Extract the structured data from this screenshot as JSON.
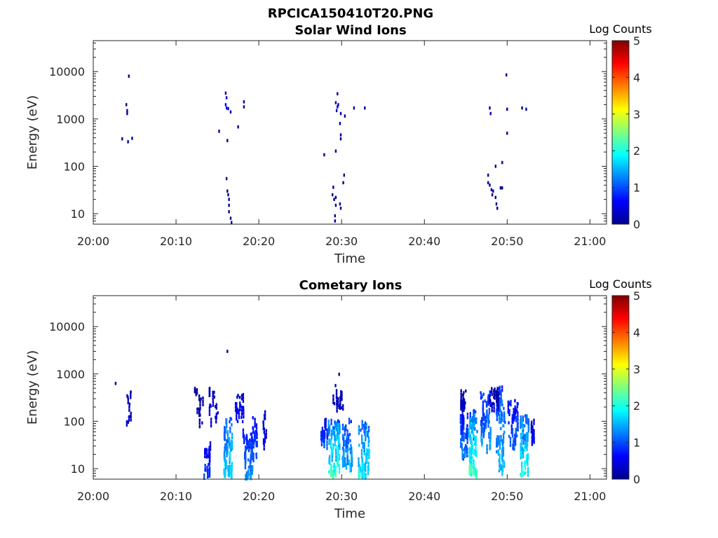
{
  "figure": {
    "title": "RPCICA150410T20.PNG",
    "colorbar_label": "Log Counts"
  },
  "chart_data": [
    {
      "type": "heatmap",
      "title": "Solar Wind Ions",
      "xlabel": "Time",
      "ylabel": "Energy (eV)",
      "x_ticks": [
        "20:00",
        "20:10",
        "20:20",
        "20:30",
        "20:40",
        "20:50",
        "21:00"
      ],
      "xlim_minutes": [
        0,
        62
      ],
      "y_scale": "log",
      "y_ticks": [
        "10",
        "100",
        "1000",
        "10000"
      ],
      "ylim": [
        6,
        45000
      ],
      "colorbar": {
        "label": "Log Counts",
        "ticks": [
          "0",
          "1",
          "2",
          "3",
          "4",
          "5"
        ],
        "range": [
          0,
          5
        ],
        "colormap": "jet"
      },
      "cells": [
        [
          3.4,
          380,
          0.1
        ],
        [
          4.1,
          330,
          0.1
        ],
        [
          4.6,
          390,
          0.1
        ],
        [
          3.9,
          2000,
          0.1
        ],
        [
          4.0,
          1500,
          0.3
        ],
        [
          4.0,
          1300,
          0.2
        ],
        [
          4.2,
          8000,
          0.1
        ],
        [
          15.1,
          550,
          0.1
        ],
        [
          15.9,
          3500,
          0.3
        ],
        [
          16.0,
          2800,
          0.4
        ],
        [
          15.9,
          2000,
          0.6
        ],
        [
          16.0,
          1700,
          0.7
        ],
        [
          16.2,
          1650,
          0.4
        ],
        [
          16.1,
          350,
          0.1
        ],
        [
          16.5,
          1400,
          0.2
        ],
        [
          17.4,
          680,
          0.1
        ],
        [
          18.1,
          2300,
          0.2
        ],
        [
          18.1,
          1800,
          0.2
        ],
        [
          16.0,
          55,
          0.1
        ],
        [
          16.1,
          30,
          0.1
        ],
        [
          16.2,
          25,
          0.1
        ],
        [
          16.3,
          20,
          0.1
        ],
        [
          16.3,
          15,
          0.1
        ],
        [
          16.3,
          11,
          0.1
        ],
        [
          16.5,
          8,
          0.1
        ],
        [
          16.6,
          6.5,
          0.1
        ],
        [
          29.4,
          3400,
          0.2
        ],
        [
          29.2,
          2200,
          0.4
        ],
        [
          29.5,
          2000,
          0.3
        ],
        [
          29.4,
          1800,
          0.4
        ],
        [
          29.3,
          1500,
          0.3
        ],
        [
          29.8,
          1300,
          0.2
        ],
        [
          29.7,
          800,
          0.1
        ],
        [
          30.3,
          1150,
          0.1
        ],
        [
          29.8,
          460,
          0.1
        ],
        [
          29.8,
          380,
          0.1
        ],
        [
          29.2,
          210,
          0.1
        ],
        [
          27.8,
          175,
          0.1
        ],
        [
          30.2,
          65,
          0.1
        ],
        [
          30.1,
          45,
          0.1
        ],
        [
          31.4,
          1700,
          0.1
        ],
        [
          32.7,
          1700,
          0.1
        ],
        [
          28.9,
          36,
          0.1
        ],
        [
          28.8,
          25,
          0.1
        ],
        [
          29.2,
          22,
          0.1
        ],
        [
          29.0,
          20,
          0.1
        ],
        [
          29.2,
          15,
          0.1
        ],
        [
          29.1,
          9,
          0.1
        ],
        [
          29.1,
          7,
          0.1
        ],
        [
          29.7,
          16,
          0.1
        ],
        [
          29.8,
          13,
          0.1
        ],
        [
          47.8,
          1700,
          0.2
        ],
        [
          47.9,
          1300,
          0.2
        ],
        [
          49.8,
          8500,
          0.1
        ],
        [
          49.9,
          1600,
          0.1
        ],
        [
          49.9,
          500,
          0.1
        ],
        [
          51.7,
          1700,
          0.1
        ],
        [
          52.2,
          1600,
          0.2
        ],
        [
          49.3,
          120,
          0.1
        ],
        [
          48.5,
          100,
          0.1
        ],
        [
          47.6,
          65,
          0.1
        ],
        [
          47.6,
          45,
          0.1
        ],
        [
          47.8,
          40,
          0.1
        ],
        [
          48.0,
          32,
          0.1
        ],
        [
          48.2,
          30,
          0.1
        ],
        [
          48.1,
          25,
          0.1
        ],
        [
          48.5,
          22,
          0.1
        ],
        [
          48.6,
          16,
          0.1
        ],
        [
          48.7,
          13,
          0.1
        ],
        [
          49.1,
          35,
          0.1
        ],
        [
          49.3,
          35,
          0.1
        ]
      ]
    },
    {
      "type": "heatmap",
      "title": "Cometary Ions",
      "xlabel": "Time",
      "ylabel": "Energy (eV)",
      "x_ticks": [
        "20:00",
        "20:10",
        "20:20",
        "20:30",
        "20:40",
        "20:50",
        "21:00"
      ],
      "xlim_minutes": [
        0,
        62
      ],
      "y_scale": "log",
      "y_ticks": [
        "10",
        "100",
        "1000",
        "10000"
      ],
      "ylim": [
        6,
        45000
      ],
      "colorbar": {
        "label": "Log Counts",
        "ticks": [
          "0",
          "1",
          "2",
          "3",
          "4",
          "5"
        ],
        "range": [
          0,
          5
        ],
        "colormap": "jet"
      },
      "clusters": [
        [
          4.2,
          0.5,
          90,
          450,
          0.2,
          0.4,
          14
        ],
        [
          12.3,
          0.3,
          420,
          560,
          0.1,
          0.2,
          5
        ],
        [
          12.9,
          0.9,
          80,
          500,
          0.1,
          0.3,
          12
        ],
        [
          13.6,
          0.9,
          7,
          40,
          0.4,
          1.0,
          24
        ],
        [
          14.5,
          1.2,
          110,
          520,
          0.2,
          0.5,
          16
        ],
        [
          16.2,
          1.0,
          7,
          120,
          0.8,
          2.0,
          60
        ],
        [
          17.6,
          1.0,
          55,
          420,
          0.3,
          0.8,
          18
        ],
        [
          18.6,
          1.1,
          7,
          60,
          0.6,
          1.6,
          46
        ],
        [
          19.3,
          0.8,
          18,
          120,
          0.5,
          1.2,
          26
        ],
        [
          20.6,
          0.5,
          35,
          200,
          0.2,
          0.6,
          10
        ],
        [
          27.8,
          0.8,
          35,
          110,
          0.4,
          1.2,
          28
        ],
        [
          29.0,
          1.4,
          7,
          110,
          0.8,
          2.5,
          70
        ],
        [
          30.6,
          1.2,
          12,
          110,
          0.6,
          1.7,
          46
        ],
        [
          32.6,
          1.3,
          7,
          100,
          0.8,
          2.2,
          60
        ],
        [
          29.5,
          1.2,
          150,
          700,
          0.1,
          0.4,
          14
        ],
        [
          44.7,
          0.9,
          18,
          150,
          0.5,
          1.4,
          40
        ],
        [
          45.8,
          1.0,
          7,
          170,
          0.8,
          2.5,
          70
        ],
        [
          47.3,
          1.2,
          30,
          420,
          0.5,
          1.6,
          50
        ],
        [
          49.1,
          1.1,
          8,
          550,
          0.7,
          1.8,
          70
        ],
        [
          50.6,
          1.2,
          30,
          320,
          0.4,
          1.3,
          40
        ],
        [
          52.0,
          1.0,
          7,
          140,
          0.8,
          2.3,
          60
        ],
        [
          53.0,
          0.4,
          40,
          110,
          0.3,
          0.8,
          12
        ],
        [
          44.7,
          0.8,
          200,
          520,
          0.1,
          0.4,
          16
        ],
        [
          48.3,
          1.1,
          220,
          520,
          0.1,
          0.4,
          18
        ]
      ],
      "cells": [
        [
          2.6,
          630,
          0.1
        ],
        [
          16.1,
          3000,
          0.1
        ],
        [
          29.6,
          980,
          0.1
        ],
        [
          17.6,
          320,
          0.2
        ],
        [
          14.0,
          220,
          0.2
        ]
      ]
    }
  ]
}
